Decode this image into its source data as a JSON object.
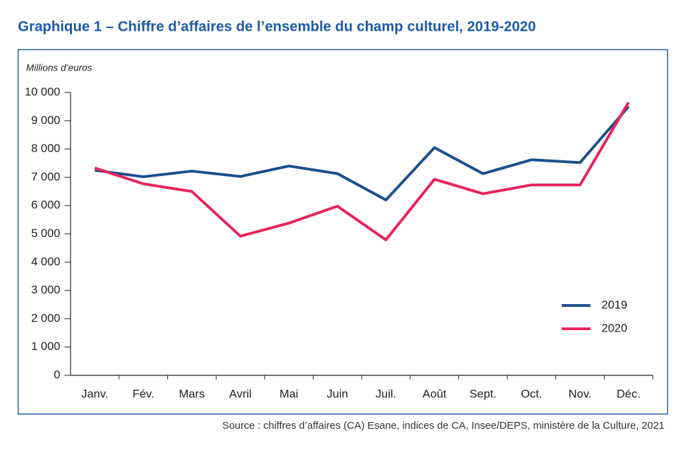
{
  "chart_data": {
    "type": "line",
    "title": "Graphique 1 – Chiffre d’affaires de l’ensemble du champ culturel, 2019-2020",
    "y_label": "Millions d’euros",
    "source": "Source : chiffres d’affaires (CA) Esane, indices de CA, Insee/DEPS, ministère de la Culture, 2021",
    "categories": [
      "Janv.",
      "Fév.",
      "Mars",
      "Avril",
      "Mai",
      "Juin",
      "Juil.",
      "Août",
      "Sept.",
      "Oct.",
      "Nov.",
      "Déc."
    ],
    "series": [
      {
        "name": "2019",
        "color": "#1c4f8c",
        "values": [
          7250,
          7020,
          7220,
          7030,
          7400,
          7130,
          6200,
          8050,
          7130,
          7620,
          7520,
          9500
        ]
      },
      {
        "name": "2020",
        "color": "#e8245a",
        "values": [
          7330,
          6770,
          6500,
          4920,
          5380,
          5980,
          4790,
          6930,
          6420,
          6730,
          6730,
          9650
        ]
      }
    ],
    "ylim": [
      0,
      10000
    ],
    "yticks": [
      0,
      {
        "value": 1000,
        "label": "1 000"
      },
      {
        "value": 2000,
        "label": "2 000"
      },
      {
        "value": 3000,
        "label": "3 000"
      },
      {
        "value": 4000,
        "label": "4 000"
      },
      {
        "value": 5000,
        "label": "5 000"
      },
      {
        "value": 6000,
        "label": "6 000"
      },
      {
        "value": 7000,
        "label": "7 000"
      },
      {
        "value": 8000,
        "label": "8 000"
      },
      {
        "value": 9000,
        "label": "9 000"
      },
      {
        "value": 10000,
        "label": "10 000"
      }
    ],
    "legend": "lower right",
    "grid": false
  }
}
